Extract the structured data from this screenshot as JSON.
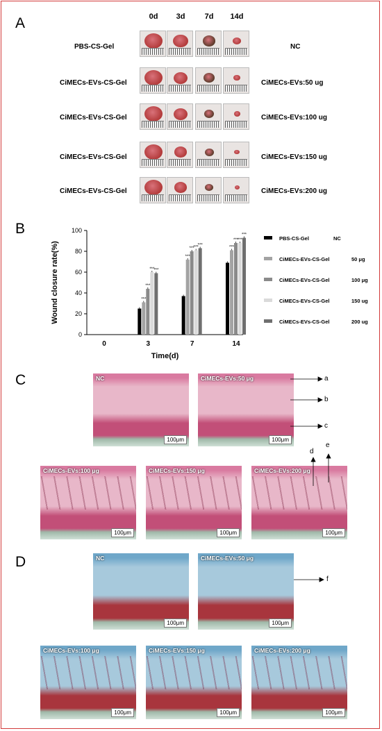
{
  "panelA": {
    "letter": "A",
    "days": [
      "0d",
      "3d",
      "7d",
      "14d"
    ],
    "rows": [
      {
        "left": "PBS-CS-Gel",
        "right": "NC"
      },
      {
        "left": "CiMECs-EVs-CS-Gel",
        "right": "CiMECs-EVs:50 ug"
      },
      {
        "left": "CiMECs-EVs-CS-Gel",
        "right": "CiMECs-EVs:100 ug"
      },
      {
        "left": "CiMECs-EVs-CS-Gel",
        "right": "CiMECs-EVs:150 ug"
      },
      {
        "left": "CiMECs-EVs-CS-Gel",
        "right": "CiMECs-EVs:200 ug"
      }
    ],
    "wound_color": "#b23a3a"
  },
  "panelB": {
    "letter": "B",
    "chart_data": {
      "type": "bar",
      "xlabel": "Time(d)",
      "ylabel": "Wound closure rate(%)",
      "ylim": [
        0,
        100
      ],
      "yticks": [
        "0",
        "20",
        "40",
        "60",
        "80",
        "100"
      ],
      "categories": [
        "0",
        "3",
        "7",
        "14"
      ],
      "significance": "***",
      "series": [
        {
          "name": "PBS-CS-Gel NC",
          "color": "#000000",
          "values": [
            0,
            25,
            37,
            69
          ]
        },
        {
          "name": "CiMECs-EVs-CS-Gel 50 μg",
          "color": "#a3a3a3",
          "values": [
            0,
            31,
            72,
            81
          ]
        },
        {
          "name": "CiMECs-EVs-CS-Gel 100 μg",
          "color": "#8a8a8a",
          "values": [
            0,
            44,
            80,
            88
          ]
        },
        {
          "name": "CiMECs-EVs-CS-Gel 150 μg",
          "color": "#dadada",
          "values": [
            0,
            60,
            81,
            88
          ]
        },
        {
          "name": "CiMECs-EVs-CS-Gel 200 μg",
          "color": "#6f6f6f",
          "values": [
            0,
            59,
            83,
            93
          ]
        }
      ],
      "legend": [
        {
          "label": "PBS-CS-Gel",
          "dose": "NC"
        },
        {
          "label": "CiMECs-EVs-CS-Gel",
          "dose": "50 μg"
        },
        {
          "label": "CiMECs-EVs-CS-Gel",
          "dose": "100 μg"
        },
        {
          "label": "CiMECs-EVs-CS-Gel",
          "dose": "150 ug"
        },
        {
          "label": "CiMECs-EVs-CS-Gel",
          "dose": "200 ug"
        }
      ]
    }
  },
  "panelC": {
    "letter": "C",
    "labels": [
      "NC",
      "CiMECs-EVs:50 μg",
      "CiMECs-EVs:100 μg",
      "CiMECs-EVs:150 μg",
      "CiMECs-EVs:200 μg"
    ],
    "scale": "100μm",
    "annotations": [
      "a",
      "b",
      "c",
      "d",
      "e"
    ],
    "colors": {
      "top": "#d97aa0",
      "mid": "#e8b7c9",
      "bottom": "#c24f78"
    }
  },
  "panelD": {
    "letter": "D",
    "labels": [
      "NC",
      "CiMECs-EVs:50 μg",
      "CiMECs-EVs:100 μg",
      "CiMECs-EVs:150 μg",
      "CiMECs-EVs:200 μg"
    ],
    "scale": "100μm",
    "annotations": [
      "f"
    ],
    "colors": {
      "top": "#6fa7c9",
      "mid": "#a7c9dc",
      "bottom": "#a8353d"
    }
  }
}
